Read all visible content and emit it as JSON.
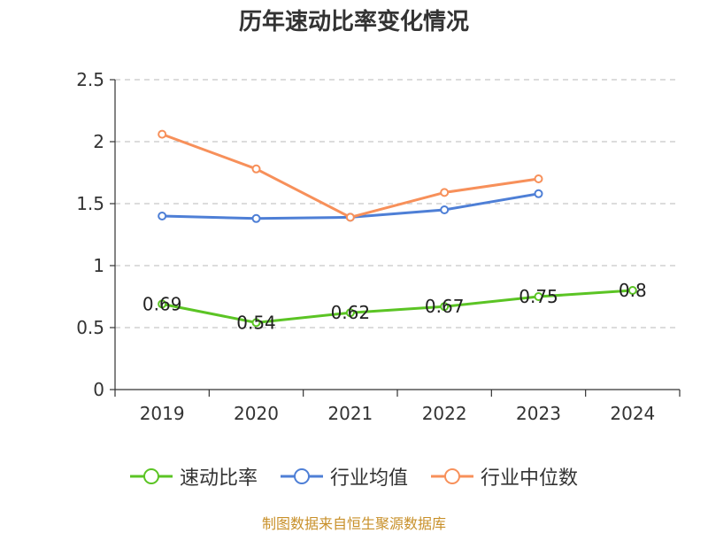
{
  "chart_data": {
    "type": "line",
    "title": "历年速动比率变化情况",
    "categories": [
      "2019",
      "2020",
      "2021",
      "2022",
      "2023",
      "2024"
    ],
    "ylim": [
      0,
      2.5
    ],
    "yticks": [
      "0",
      "0.5",
      "1",
      "1.5",
      "2",
      "2.5"
    ],
    "ytick_values": [
      0,
      0.5,
      1,
      1.5,
      2,
      2.5
    ],
    "grid": true,
    "legend_position": "bottom-center",
    "series": [
      {
        "name": "速动比率",
        "color": "#5bc424",
        "values": [
          0.69,
          0.54,
          0.62,
          0.67,
          0.75,
          0.8
        ],
        "labels": [
          "0.69",
          "0.54",
          "0.62",
          "0.67",
          "0.75",
          "0.8"
        ]
      },
      {
        "name": "行业均值",
        "color": "#4e7fd6",
        "values": [
          1.4,
          1.38,
          1.39,
          1.45,
          1.58,
          null
        ]
      },
      {
        "name": "行业中位数",
        "color": "#f7905a",
        "values": [
          2.06,
          1.78,
          1.39,
          1.59,
          1.7,
          null
        ]
      }
    ]
  },
  "source": "制图数据来自恒生聚源数据库"
}
